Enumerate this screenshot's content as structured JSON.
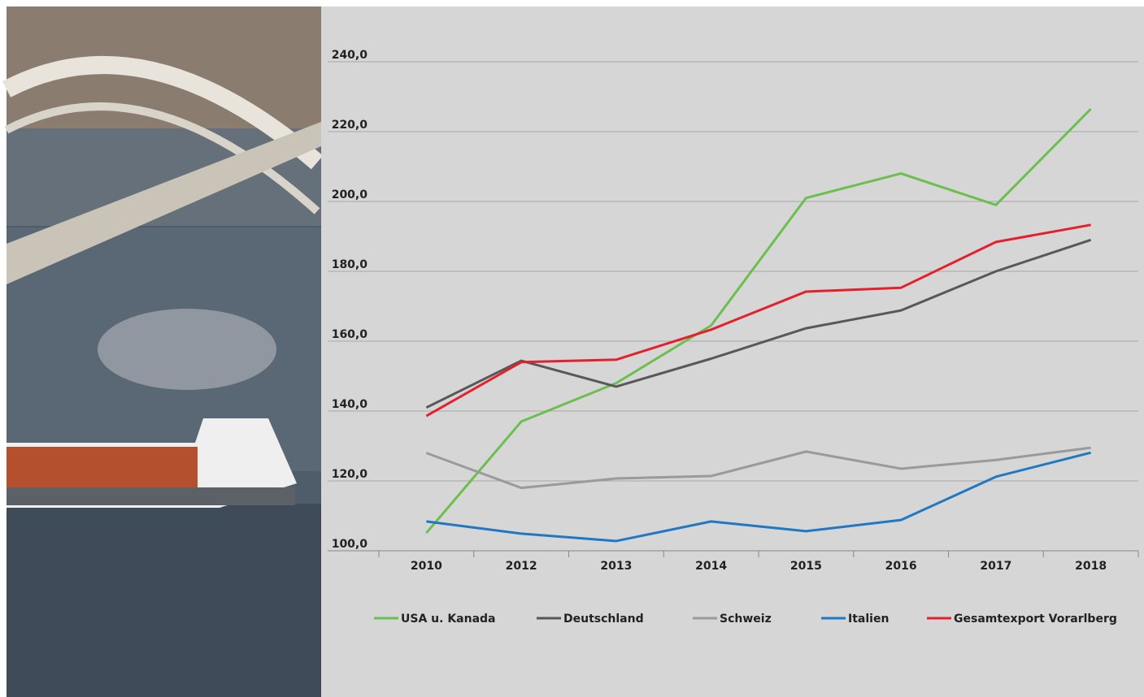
{
  "chart_data": {
    "type": "line",
    "categories": [
      "2010",
      "2012",
      "2013",
      "2014",
      "2015",
      "2016",
      "2017",
      "2018"
    ],
    "series": [
      {
        "name": "USA u. Kanada",
        "color": "#6cbf4f",
        "values": [
          105.1,
          137,
          148,
          164.5,
          201,
          208,
          199,
          226.5
        ]
      },
      {
        "name": "Deutschland",
        "color": "#585858",
        "values": [
          141,
          154.4,
          147,
          155,
          163.7,
          168.8,
          180,
          189
        ]
      },
      {
        "name": "Schweiz",
        "color": "#9a9a9a",
        "values": [
          128,
          118,
          120.7,
          121.4,
          128.4,
          123.5,
          126,
          129.5
        ]
      },
      {
        "name": "Italien",
        "color": "#1f78c1",
        "values": [
          108.4,
          104.9,
          102.8,
          108.4,
          105.6,
          108.8,
          121.2,
          128.1
        ]
      },
      {
        "name": "Gesamtexport Vorarlberg",
        "color": "#e3202b",
        "values": [
          138.6,
          154,
          154.7,
          163.3,
          174.2,
          175.3,
          188.4,
          193.3
        ]
      }
    ],
    "ylim": [
      100,
      240
    ],
    "yticks": [
      {
        "value": 100,
        "label": "100,0"
      },
      {
        "value": 120,
        "label": "120,0"
      },
      {
        "value": 140,
        "label": "140,0"
      },
      {
        "value": 160,
        "label": "160,0"
      },
      {
        "value": 180,
        "label": "180,0"
      },
      {
        "value": 200,
        "label": "200,0"
      },
      {
        "value": 220,
        "label": "220,0"
      },
      {
        "value": 240,
        "label": "240,0"
      }
    ],
    "grid": true,
    "legend": "bottom"
  }
}
